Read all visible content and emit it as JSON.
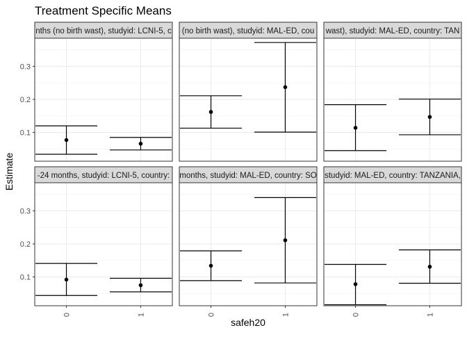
{
  "chart_data": {
    "type": "errorbar",
    "title": "Treatment Specific Means",
    "xlabel": "safeh20",
    "ylabel": "Estimate",
    "categories": [
      "0",
      "1"
    ],
    "yticks": [
      0.1,
      0.2,
      0.3
    ],
    "ylim": [
      0.013,
      0.385
    ],
    "grid": true,
    "panels": [
      {
        "strip": "nths (no birth wast), studyid: LCNI-5, c",
        "points": [
          {
            "x": "0",
            "est": 0.077,
            "lo": 0.034,
            "hi": 0.12
          },
          {
            "x": "1",
            "est": 0.066,
            "lo": 0.047,
            "hi": 0.085
          }
        ]
      },
      {
        "strip": "(no birth wast), studyid: MAL-ED, cou",
        "points": [
          {
            "x": "0",
            "est": 0.162,
            "lo": 0.113,
            "hi": 0.211
          },
          {
            "x": "1",
            "est": 0.237,
            "lo": 0.101,
            "hi": 0.372
          }
        ]
      },
      {
        "strip": "wast), studyid: MAL-ED, country: TAN",
        "points": [
          {
            "x": "0",
            "est": 0.114,
            "lo": 0.045,
            "hi": 0.184
          },
          {
            "x": "1",
            "est": 0.147,
            "lo": 0.093,
            "hi": 0.201
          }
        ]
      },
      {
        "strip": "-24 months, studyid: LCNI-5, country:",
        "points": [
          {
            "x": "0",
            "est": 0.092,
            "lo": 0.044,
            "hi": 0.141
          },
          {
            "x": "1",
            "est": 0.075,
            "lo": 0.055,
            "hi": 0.096
          }
        ]
      },
      {
        "strip": "months, studyid: MAL-ED, country: SO",
        "points": [
          {
            "x": "0",
            "est": 0.134,
            "lo": 0.089,
            "hi": 0.179
          },
          {
            "x": "1",
            "est": 0.211,
            "lo": 0.082,
            "hi": 0.34
          }
        ]
      },
      {
        "strip": "studyid: MAL-ED, country: TANZANIA,",
        "points": [
          {
            "x": "0",
            "est": 0.078,
            "lo": 0.016,
            "hi": 0.138
          },
          {
            "x": "1",
            "est": 0.131,
            "lo": 0.081,
            "hi": 0.182
          }
        ]
      }
    ]
  }
}
